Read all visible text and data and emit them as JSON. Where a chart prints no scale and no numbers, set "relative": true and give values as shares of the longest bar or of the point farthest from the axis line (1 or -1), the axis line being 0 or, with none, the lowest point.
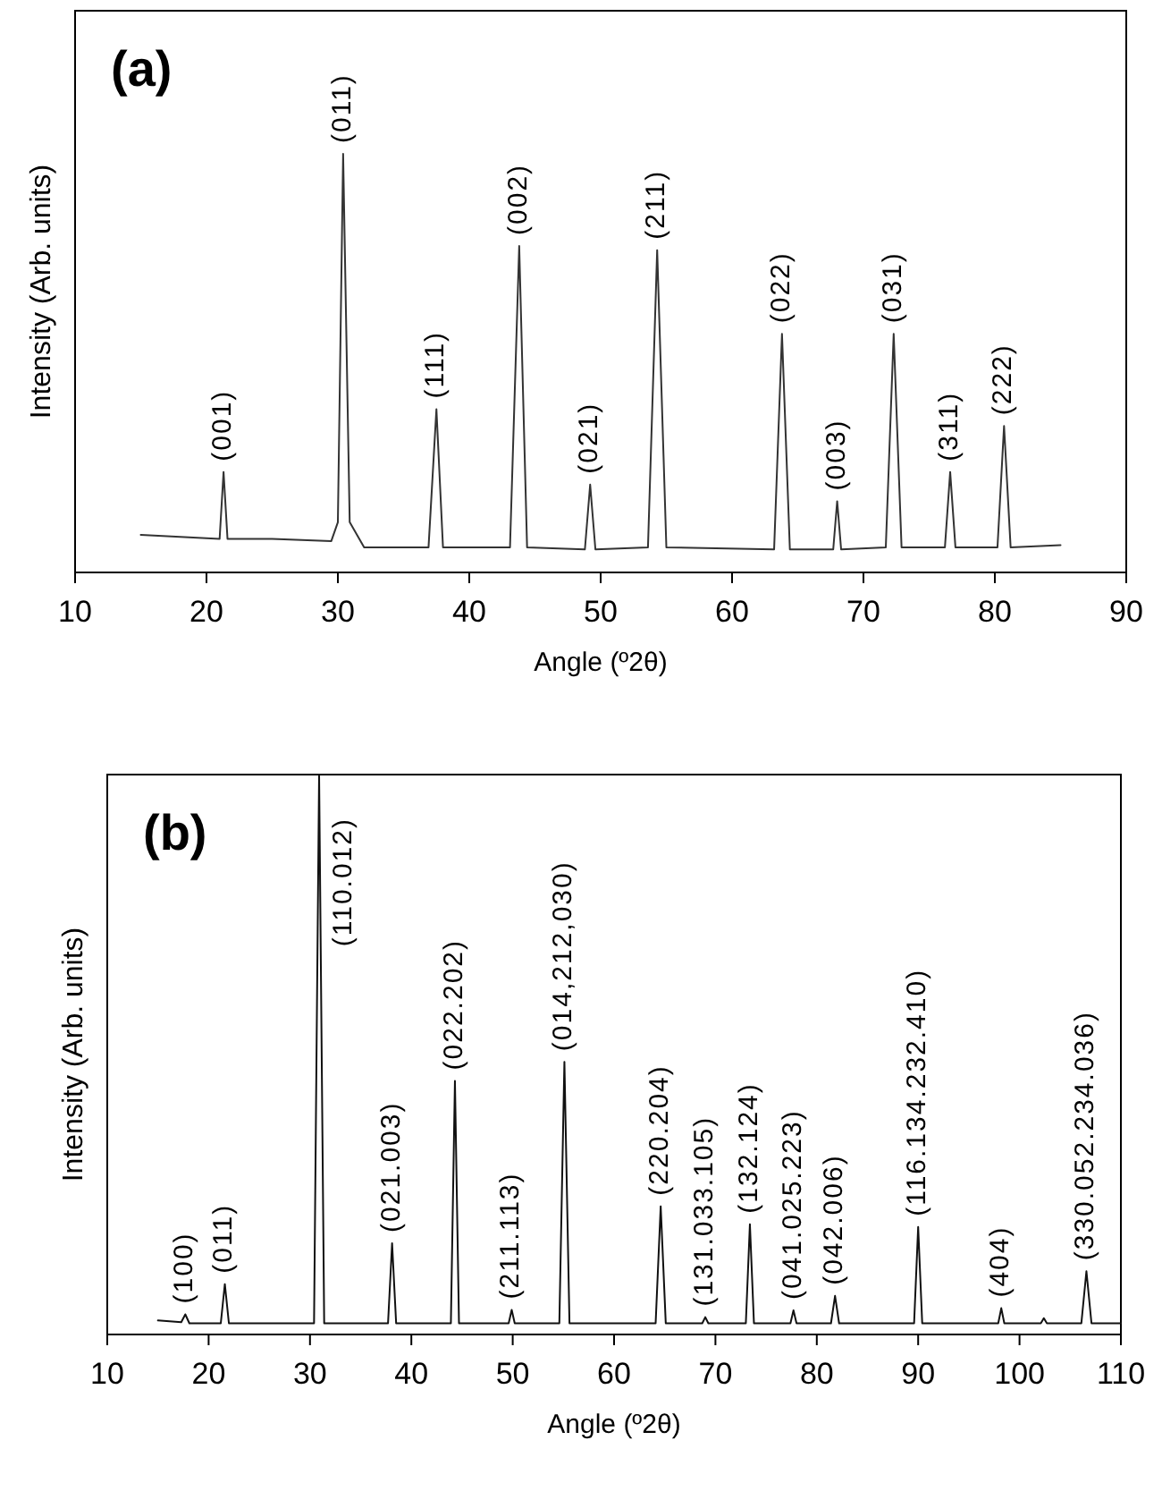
{
  "chart_data": [
    {
      "type": "line",
      "relative": true,
      "xlabel": "Angle (º2θ)",
      "ylabel": "Intensity (Arb. units)",
      "xlim": [
        10,
        90
      ],
      "xticks": [
        10,
        20,
        30,
        40,
        50,
        60,
        70,
        80,
        90
      ],
      "x": [
        15,
        18,
        21.0,
        21.3,
        21.6,
        25,
        29.5,
        30.0,
        30.4,
        30.9,
        32,
        36.9,
        37.5,
        38.0,
        43.1,
        43.8,
        44.4,
        48.8,
        49.2,
        49.6,
        53.6,
        54.3,
        55.0,
        63.2,
        63.8,
        64.4,
        67.7,
        68.0,
        68.3,
        71.7,
        72.3,
        72.9,
        76.2,
        76.6,
        77.0,
        80.2,
        80.7,
        81.2,
        85
      ],
      "series": [
        {
          "color": "#333333",
          "values": [
            0.09,
            0.085,
            0.08,
            0.24,
            0.08,
            0.08,
            0.075,
            0.12,
            1.0,
            0.12,
            0.06,
            0.06,
            0.39,
            0.06,
            0.06,
            0.78,
            0.06,
            0.055,
            0.21,
            0.055,
            0.06,
            0.77,
            0.06,
            0.055,
            0.57,
            0.055,
            0.055,
            0.17,
            0.055,
            0.06,
            0.57,
            0.06,
            0.06,
            0.24,
            0.06,
            0.06,
            0.35,
            0.06,
            0.065
          ]
        }
      ],
      "annotations": [
        "(a)",
        {
          "text": "(001)",
          "x": 21.3,
          "y": 0.24
        },
        {
          "text": "(011)",
          "x": 30.4,
          "y": 1.0
        },
        {
          "text": "(111)",
          "x": 37.5,
          "y": 0.39
        },
        {
          "text": "(002)",
          "x": 43.8,
          "y": 0.78
        },
        {
          "text": "(021)",
          "x": 49.2,
          "y": 0.21
        },
        {
          "text": "(211)",
          "x": 54.3,
          "y": 0.77
        },
        {
          "text": "(022)",
          "x": 63.8,
          "y": 0.57
        },
        {
          "text": "(003)",
          "x": 68.0,
          "y": 0.17
        },
        {
          "text": "(031)",
          "x": 72.3,
          "y": 0.57
        },
        {
          "text": "(311)",
          "x": 76.6,
          "y": 0.24
        },
        {
          "text": "(222)",
          "x": 80.7,
          "y": 0.35
        }
      ]
    },
    {
      "type": "line",
      "relative": true,
      "xlabel": "Angle (º2θ)",
      "ylabel": "Intensity (Arb. units)",
      "xlim": [
        10,
        110
      ],
      "xticks": [
        10,
        20,
        30,
        40,
        50,
        60,
        70,
        80,
        90,
        100,
        110
      ],
      "x": [
        15,
        17.3,
        17.7,
        18.1,
        21.2,
        21.6,
        22.0,
        30.4,
        30.9,
        31.4,
        37.7,
        38.1,
        38.5,
        43.9,
        44.3,
        44.7,
        49.6,
        49.9,
        50.2,
        54.6,
        55.1,
        55.6,
        64.1,
        64.6,
        65.1,
        68.7,
        69.0,
        69.3,
        73.0,
        73.4,
        73.8,
        77.4,
        77.7,
        78.0,
        81.4,
        81.8,
        82.2,
        89.6,
        90.0,
        90.4,
        97.9,
        98.2,
        98.5,
        102.1,
        102.4,
        102.7,
        106.1,
        106.6,
        107.1,
        110
      ],
      "series": [
        {
          "color": "#111111",
          "values": [
            0.025,
            0.022,
            0.036,
            0.02,
            0.02,
            0.09,
            0.02,
            0.02,
            1.0,
            0.02,
            0.02,
            0.163,
            0.02,
            0.02,
            0.453,
            0.02,
            0.02,
            0.044,
            0.02,
            0.02,
            0.487,
            0.02,
            0.02,
            0.229,
            0.02,
            0.02,
            0.031,
            0.02,
            0.02,
            0.197,
            0.02,
            0.02,
            0.043,
            0.02,
            0.02,
            0.069,
            0.02,
            0.02,
            0.192,
            0.02,
            0.02,
            0.047,
            0.02,
            0.02,
            0.029,
            0.02,
            0.02,
            0.113,
            0.02,
            0.02
          ]
        }
      ],
      "annotations": [
        "(b)",
        {
          "text": "(100)",
          "x": 17.7,
          "y": 0.036
        },
        {
          "text": "(011)",
          "x": 21.6,
          "y": 0.09
        },
        {
          "text": "(110.012)",
          "x": 30.9,
          "y": 1.0
        },
        {
          "text": "(021.003)",
          "x": 38.1,
          "y": 0.163
        },
        {
          "text": "(022.202)",
          "x": 44.3,
          "y": 0.453
        },
        {
          "text": "(211.113)",
          "x": 49.9,
          "y": 0.044
        },
        {
          "text": "(014,212,030)",
          "x": 55.1,
          "y": 0.487
        },
        {
          "text": "(220.204)",
          "x": 64.6,
          "y": 0.229
        },
        {
          "text": "(131.033.105)",
          "x": 69.0,
          "y": 0.031
        },
        {
          "text": "(132.124)",
          "x": 73.4,
          "y": 0.197
        },
        {
          "text": "(041.025.223)",
          "x": 77.7,
          "y": 0.043
        },
        {
          "text": "(042.006)",
          "x": 81.8,
          "y": 0.069
        },
        {
          "text": "(116.134.232.410)",
          "x": 90.0,
          "y": 0.192
        },
        {
          "text": "(404)",
          "x": 98.2,
          "y": 0.047
        },
        {
          "text": "(330.052.234.036)",
          "x": 106.6,
          "y": 0.113
        }
      ]
    }
  ]
}
